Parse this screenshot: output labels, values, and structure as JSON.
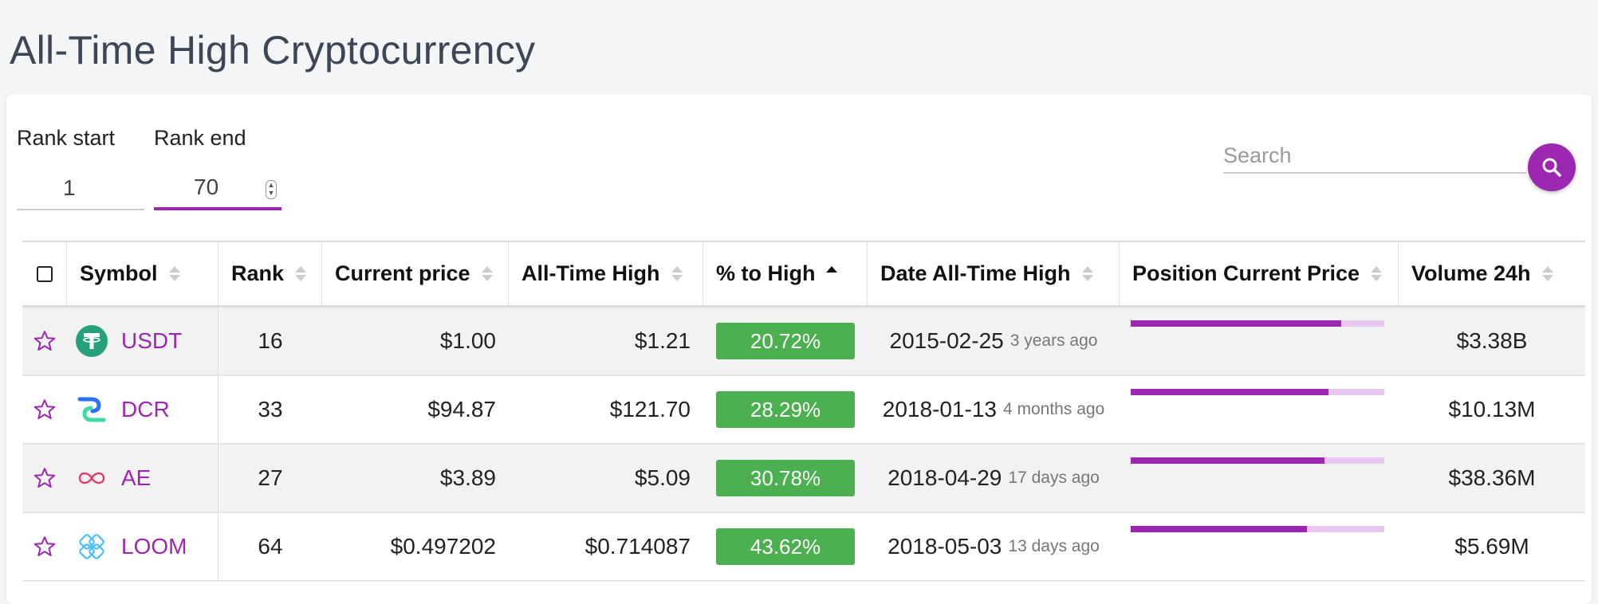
{
  "page": {
    "title": "All-Time High Cryptocurrency"
  },
  "filters": {
    "rank_start_label": "Rank start",
    "rank_start_value": "1",
    "rank_end_label": "Rank end",
    "rank_end_value": "70",
    "search_placeholder": "Search"
  },
  "table": {
    "columns": [
      {
        "key": "symbol",
        "label": "Symbol",
        "sort": "none"
      },
      {
        "key": "rank",
        "label": "Rank",
        "sort": "none"
      },
      {
        "key": "current_price",
        "label": "Current price",
        "sort": "none"
      },
      {
        "key": "ath",
        "label": "All-Time High",
        "sort": "none"
      },
      {
        "key": "pct",
        "label": "% to High",
        "sort": "asc"
      },
      {
        "key": "date",
        "label": "Date All-Time High",
        "sort": "none"
      },
      {
        "key": "position",
        "label": "Position Current Price",
        "sort": "none"
      },
      {
        "key": "volume",
        "label": "Volume 24h",
        "sort": "none"
      }
    ],
    "rows": [
      {
        "symbol": "USDT",
        "icon": "tether-icon",
        "rank": "16",
        "current_price": "$1.00",
        "ath": "$1.21",
        "pct": "20.72%",
        "date": "2015-02-25",
        "ago": "3 years ago",
        "position": 0.83,
        "volume": "$3.38B"
      },
      {
        "symbol": "DCR",
        "icon": "decred-icon",
        "rank": "33",
        "current_price": "$94.87",
        "ath": "$121.70",
        "pct": "28.29%",
        "date": "2018-01-13",
        "ago": "4 months ago",
        "position": 0.78,
        "volume": "$10.13M"
      },
      {
        "symbol": "AE",
        "icon": "aeternity-icon",
        "rank": "27",
        "current_price": "$3.89",
        "ath": "$5.09",
        "pct": "30.78%",
        "date": "2018-04-29",
        "ago": "17 days ago",
        "position": 0.765,
        "volume": "$38.36M"
      },
      {
        "symbol": "LOOM",
        "icon": "loom-icon",
        "rank": "64",
        "current_price": "$0.497202",
        "ath": "$0.714087",
        "pct": "43.62%",
        "date": "2018-05-03",
        "ago": "13 days ago",
        "position": 0.695,
        "volume": "$5.69M"
      }
    ]
  },
  "colors": {
    "accent": "#9c27b0",
    "badge": "#4caf50",
    "tether": "#26a17b",
    "decred_a": "#2970ff",
    "decred_b": "#41d9a4",
    "aeternity": "#de3f6b",
    "loom": "#48beff"
  }
}
